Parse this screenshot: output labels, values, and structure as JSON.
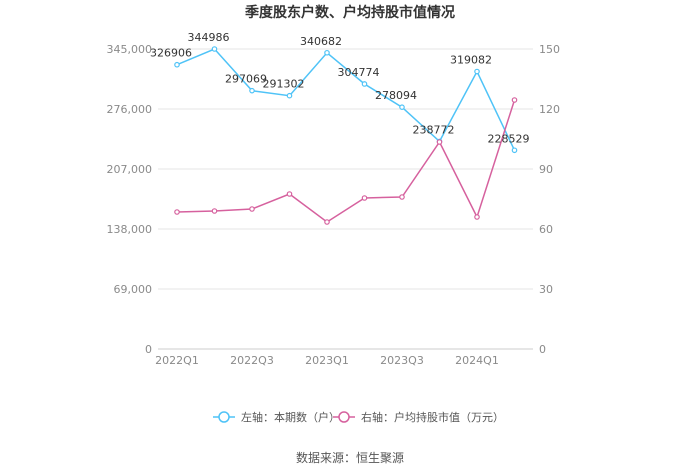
{
  "chart_data": {
    "type": "line",
    "title": "季度股东户数、户均持股市值情况",
    "categories": [
      "2022Q1",
      "2022Q2",
      "2022Q3",
      "2022Q4",
      "2023Q1",
      "2023Q2",
      "2023Q3",
      "2023Q4",
      "2024Q1",
      "2024Q2"
    ],
    "x_tick_labels": [
      "2022Q1",
      "2022Q3",
      "2023Q1",
      "2023Q3",
      "2024Q1"
    ],
    "left_axis": {
      "ylim": [
        0,
        345000
      ],
      "ticks": [
        "0",
        "69,000",
        "138,000",
        "207,000",
        "276,000",
        "345,000"
      ]
    },
    "right_axis": {
      "ylim": [
        0,
        150
      ],
      "ticks": [
        "0",
        "30",
        "60",
        "90",
        "120",
        "150"
      ]
    },
    "series": [
      {
        "name": "左轴：本期数（户）",
        "axis": "left",
        "color": "#4fc3f7",
        "values": [
          326906,
          344986,
          297069,
          291302,
          340682,
          304774,
          278094,
          238772,
          319082,
          228529
        ],
        "labels": [
          "326906",
          "344986",
          "297069",
          "291302",
          "340682",
          "304774",
          "278094",
          "238772",
          "319082",
          "228529"
        ]
      },
      {
        "name": "右轴：户均持股市值（万元）",
        "axis": "right",
        "color": "#d6619e",
        "values": [
          68.5,
          69.0,
          70.0,
          77.5,
          63.5,
          75.5,
          76.0,
          103.5,
          66.0,
          124.5
        ]
      }
    ],
    "grid": true,
    "legend_position": "bottom"
  },
  "source": "数据来源：恒生聚源"
}
